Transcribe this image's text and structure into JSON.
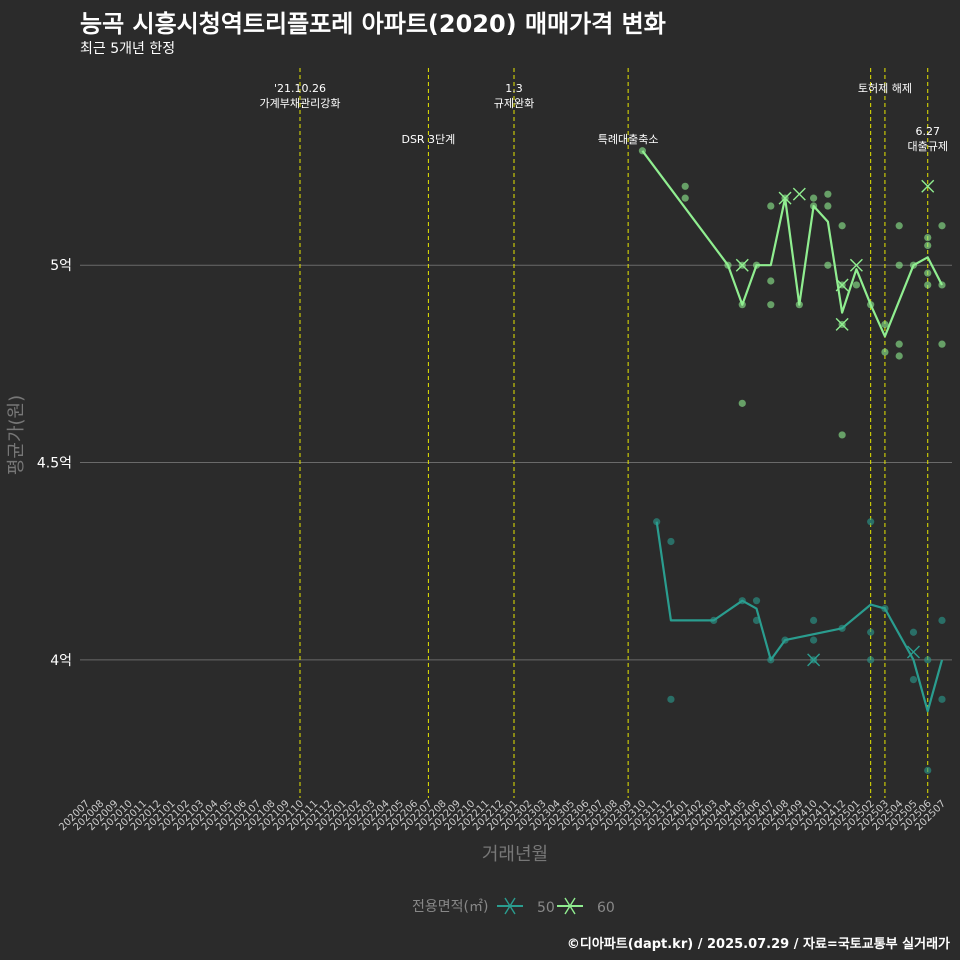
{
  "header": {
    "title": "능곡 시흥시청역트리플포레 아파트(2020) 매매가격 변화",
    "subtitle": "최근 5개년 한정"
  },
  "caption": "©디아파트(dapt.kr) / 2025.07.29 / 자료=국토교통부 실거래가",
  "colors": {
    "background": "#2b2b2b",
    "grid": "#6a6a6a",
    "event_line": "#e6e600",
    "series_50": "#2a9d8f",
    "series_60": "#90ee90"
  },
  "chart_data": {
    "type": "line",
    "xlabel": "거래년월",
    "ylabel": "평균가(원)",
    "x_ticks": [
      "202007",
      "202008",
      "202009",
      "202010",
      "202011",
      "202012",
      "202101",
      "202102",
      "202103",
      "202104",
      "202105",
      "202106",
      "202107",
      "202108",
      "202109",
      "202110",
      "202111",
      "202112",
      "202201",
      "202202",
      "202203",
      "202204",
      "202205",
      "202206",
      "202207",
      "202208",
      "202209",
      "202210",
      "202211",
      "202212",
      "202301",
      "202302",
      "202303",
      "202304",
      "202305",
      "202306",
      "202307",
      "202308",
      "202309",
      "202310",
      "202311",
      "202312",
      "202401",
      "202402",
      "202403",
      "202404",
      "202405",
      "202406",
      "202407",
      "202408",
      "202409",
      "202410",
      "202411",
      "202412",
      "202501",
      "202502",
      "202503",
      "202504",
      "202505",
      "202506",
      "202507"
    ],
    "y_ticks": [
      {
        "value": 4.0,
        "label": "4억"
      },
      {
        "value": 4.5,
        "label": "4.5억"
      },
      {
        "value": 5.0,
        "label": "5억"
      }
    ],
    "ylim": [
      3.65,
      5.52
    ],
    "grid": true,
    "legend": {
      "title": "전용면적(㎡)",
      "position": "bottom",
      "entries": [
        "50",
        "60"
      ]
    },
    "events": [
      {
        "x": "202110",
        "lines": [
          "'21.10.26",
          "가계부채관리강화"
        ],
        "row": 0
      },
      {
        "x": "202207",
        "lines": [
          "DSR 3단계"
        ],
        "row": 1
      },
      {
        "x": "202301",
        "lines": [
          "1.3",
          "규제완화"
        ],
        "row": 0
      },
      {
        "x": "202309",
        "lines": [
          "특례대출축소"
        ],
        "row": 1
      },
      {
        "x": "202502",
        "lines": [],
        "row": 0
      },
      {
        "x": "202503",
        "lines": [
          "토허제 해제"
        ],
        "row": 0
      },
      {
        "x": "202506",
        "lines": [
          "6.27",
          "대출규제"
        ],
        "row": 2
      }
    ],
    "series": [
      {
        "name": "50",
        "line": [
          {
            "x": "202311",
            "y": 4.35
          },
          {
            "x": "202312",
            "y": 4.1
          },
          {
            "x": "202403",
            "y": 4.1
          },
          {
            "x": "202405",
            "y": 4.15
          },
          {
            "x": "202406",
            "y": 4.13
          },
          {
            "x": "202407",
            "y": 4.0
          },
          {
            "x": "202408",
            "y": 4.05
          },
          {
            "x": "202412",
            "y": 4.08
          },
          {
            "x": "202502",
            "y": 4.14
          },
          {
            "x": "202503",
            "y": 4.13
          },
          {
            "x": "202505",
            "y": 4.0
          },
          {
            "x": "202506",
            "y": 3.87
          },
          {
            "x": "202507",
            "y": 4.0
          }
        ],
        "points": [
          {
            "x": "202311",
            "y": 4.35
          },
          {
            "x": "202312",
            "y": 4.3
          },
          {
            "x": "202312",
            "y": 3.9
          },
          {
            "x": "202403",
            "y": 4.1
          },
          {
            "x": "202405",
            "y": 4.15
          },
          {
            "x": "202406",
            "y": 4.15
          },
          {
            "x": "202406",
            "y": 4.1
          },
          {
            "x": "202407",
            "y": 4.0
          },
          {
            "x": "202408",
            "y": 4.05
          },
          {
            "x": "202410",
            "y": 4.1
          },
          {
            "x": "202410",
            "y": 4.05
          },
          {
            "x": "202410",
            "y": 4.0
          },
          {
            "x": "202412",
            "y": 4.08
          },
          {
            "x": "202502",
            "y": 4.35
          },
          {
            "x": "202502",
            "y": 4.07
          },
          {
            "x": "202502",
            "y": 4.0
          },
          {
            "x": "202503",
            "y": 4.13
          },
          {
            "x": "202505",
            "y": 4.07
          },
          {
            "x": "202505",
            "y": 3.95
          },
          {
            "x": "202506",
            "y": 4.0
          },
          {
            "x": "202506",
            "y": 3.72
          },
          {
            "x": "202507",
            "y": 4.1
          },
          {
            "x": "202507",
            "y": 3.9
          }
        ],
        "cancelled": [
          {
            "x": "202410",
            "y": 4.0
          },
          {
            "x": "202505",
            "y": 4.02
          }
        ]
      },
      {
        "name": "60",
        "line": [
          {
            "x": "202310",
            "y": 5.29
          },
          {
            "x": "202404",
            "y": 5.0
          },
          {
            "x": "202405",
            "y": 4.9
          },
          {
            "x": "202406",
            "y": 5.0
          },
          {
            "x": "202407",
            "y": 5.0
          },
          {
            "x": "202408",
            "y": 5.17
          },
          {
            "x": "202409",
            "y": 4.9
          },
          {
            "x": "202410",
            "y": 5.15
          },
          {
            "x": "202411",
            "y": 5.11
          },
          {
            "x": "202412",
            "y": 4.88
          },
          {
            "x": "202501",
            "y": 4.99
          },
          {
            "x": "202502",
            "y": 4.9
          },
          {
            "x": "202503",
            "y": 4.82
          },
          {
            "x": "202505",
            "y": 5.0
          },
          {
            "x": "202506",
            "y": 5.02
          },
          {
            "x": "202507",
            "y": 4.95
          }
        ],
        "points": [
          {
            "x": "202310",
            "y": 5.29
          },
          {
            "x": "202401",
            "y": 5.2
          },
          {
            "x": "202401",
            "y": 5.17
          },
          {
            "x": "202404",
            "y": 5.0
          },
          {
            "x": "202405",
            "y": 5.0
          },
          {
            "x": "202405",
            "y": 4.9
          },
          {
            "x": "202405",
            "y": 4.65
          },
          {
            "x": "202406",
            "y": 5.0
          },
          {
            "x": "202407",
            "y": 5.15
          },
          {
            "x": "202407",
            "y": 4.96
          },
          {
            "x": "202407",
            "y": 4.9
          },
          {
            "x": "202408",
            "y": 5.17
          },
          {
            "x": "202409",
            "y": 4.9
          },
          {
            "x": "202410",
            "y": 5.17
          },
          {
            "x": "202410",
            "y": 5.15
          },
          {
            "x": "202411",
            "y": 5.18
          },
          {
            "x": "202411",
            "y": 5.15
          },
          {
            "x": "202411",
            "y": 5.0
          },
          {
            "x": "202412",
            "y": 5.1
          },
          {
            "x": "202412",
            "y": 4.95
          },
          {
            "x": "202412",
            "y": 4.85
          },
          {
            "x": "202412",
            "y": 4.57
          },
          {
            "x": "202501",
            "y": 4.95
          },
          {
            "x": "202502",
            "y": 4.9
          },
          {
            "x": "202503",
            "y": 4.85
          },
          {
            "x": "202503",
            "y": 4.78
          },
          {
            "x": "202504",
            "y": 5.1
          },
          {
            "x": "202504",
            "y": 5.0
          },
          {
            "x": "202504",
            "y": 4.8
          },
          {
            "x": "202504",
            "y": 4.77
          },
          {
            "x": "202505",
            "y": 5.0
          },
          {
            "x": "202506",
            "y": 5.07
          },
          {
            "x": "202506",
            "y": 5.05
          },
          {
            "x": "202506",
            "y": 4.98
          },
          {
            "x": "202506",
            "y": 4.95
          },
          {
            "x": "202507",
            "y": 5.1
          },
          {
            "x": "202507",
            "y": 4.95
          },
          {
            "x": "202507",
            "y": 4.8
          }
        ],
        "cancelled": [
          {
            "x": "202405",
            "y": 5.0
          },
          {
            "x": "202408",
            "y": 5.17
          },
          {
            "x": "202409",
            "y": 5.18
          },
          {
            "x": "202412",
            "y": 4.95
          },
          {
            "x": "202412",
            "y": 4.85
          },
          {
            "x": "202501",
            "y": 5.0
          },
          {
            "x": "202506",
            "y": 5.2
          }
        ]
      }
    ]
  }
}
